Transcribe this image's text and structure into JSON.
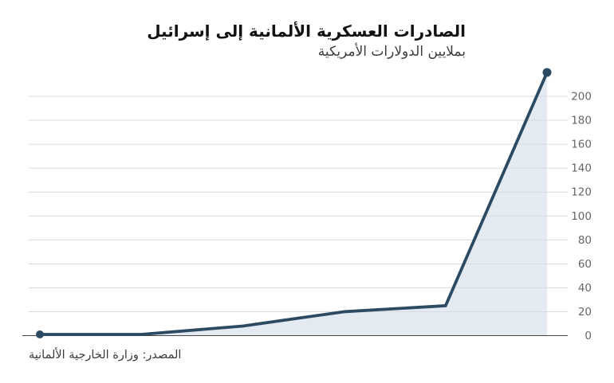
{
  "header": {
    "title": "الصادرات العسكرية الألمانية إلى إسرائيل",
    "subtitle": "بملايين الدولارات الأمريكية"
  },
  "source": {
    "label": "المصدر: وزارة الخارجية الألمانية"
  },
  "colors": {
    "line": "#2d4a63",
    "marker": "#2d4a63",
    "area_fill": "#e3eaf1",
    "grid": "#d7dbdf",
    "axis": "#454545",
    "tick_label": "#666666"
  },
  "chart_data": {
    "type": "area",
    "title": "الصادرات العسكرية الألمانية إلى إسرائيل",
    "subtitle": "بملايين الدولارات الأمريكية",
    "x": [
      1,
      2,
      3,
      4,
      5,
      6
    ],
    "x_tick_labels": [],
    "series": [
      {
        "name": "الصادرات العسكرية",
        "values": [
          1,
          1,
          8,
          20,
          25,
          220
        ]
      }
    ],
    "ylim": [
      0,
      222
    ],
    "yticks": [
      0,
      20,
      40,
      60,
      80,
      100,
      120,
      140,
      160,
      180,
      200
    ],
    "y_axis_side": "right",
    "grid": true,
    "legend": false,
    "markers": "first-and-last-point-only",
    "notes": "no x-axis tick labels visible; area under line shaded; dark slate line"
  }
}
